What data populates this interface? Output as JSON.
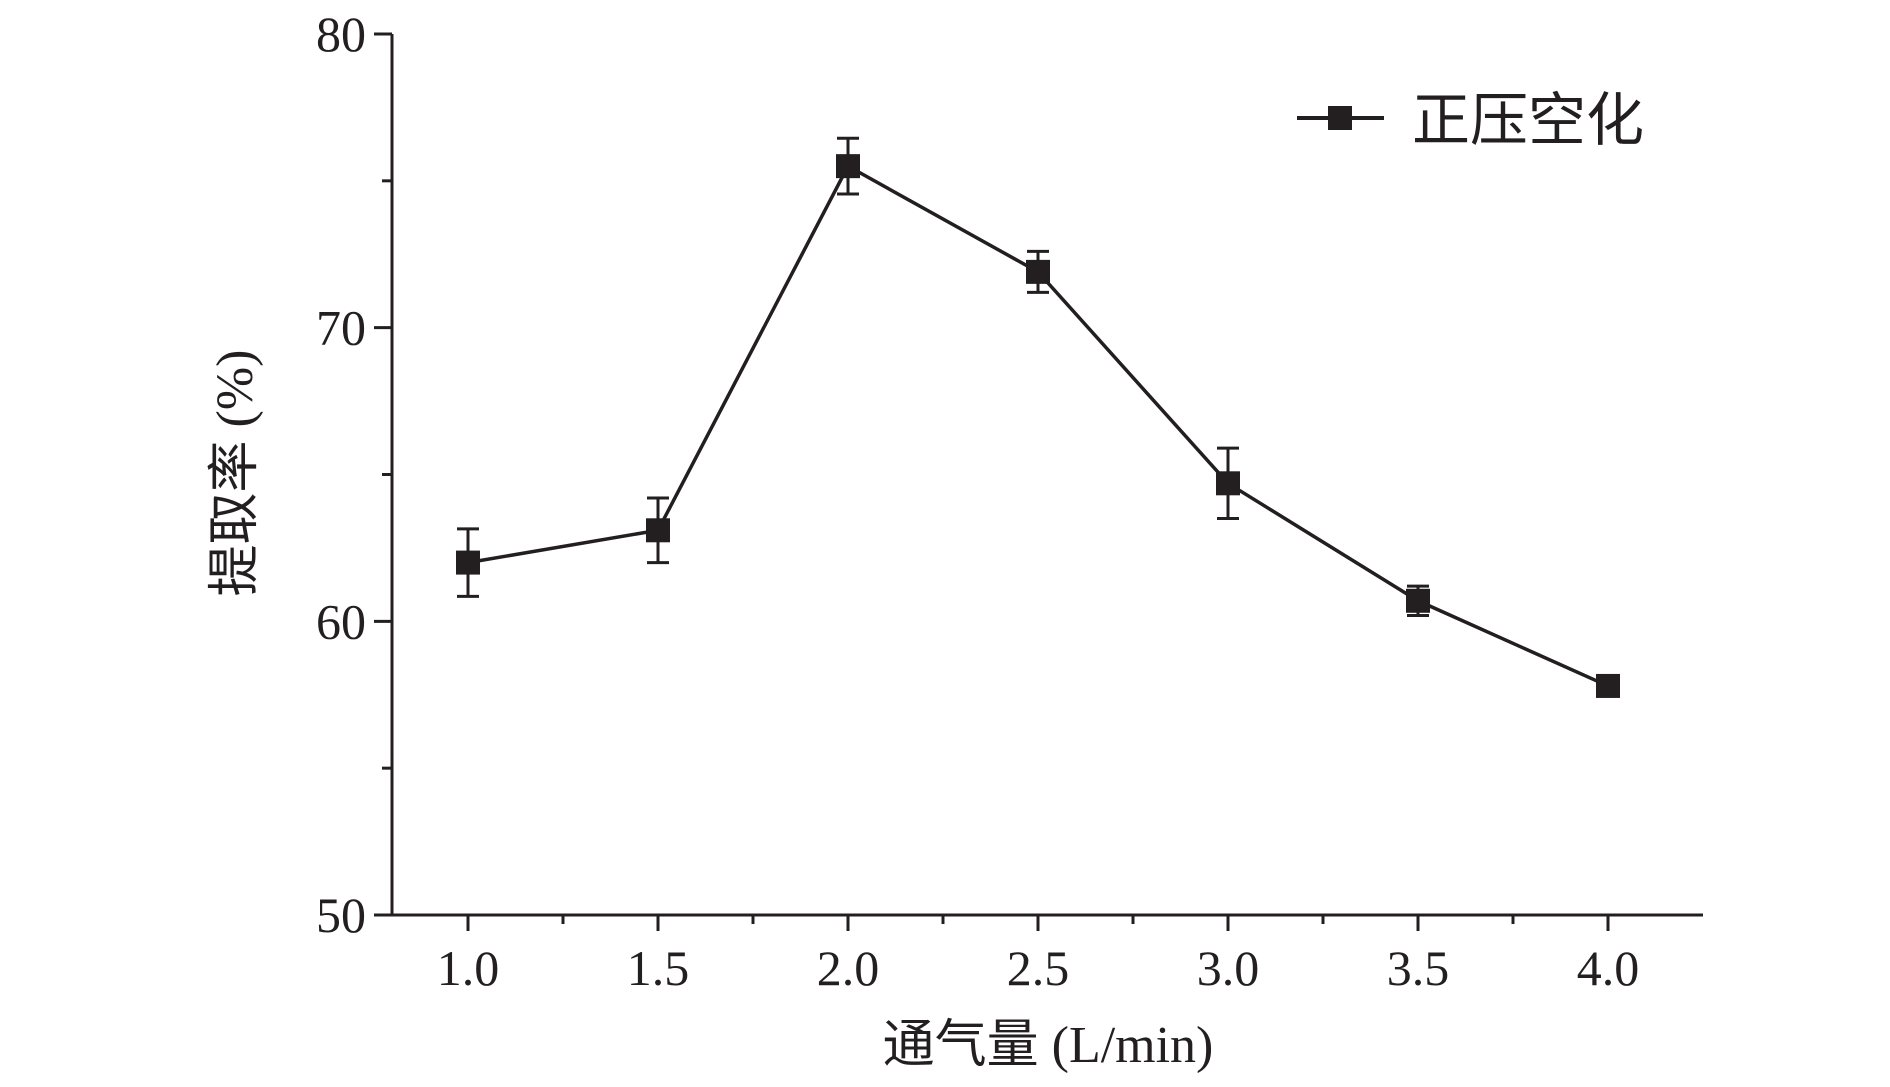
{
  "chart_data": {
    "type": "line",
    "xlabel": "通气量 (L/min)",
    "ylabel": "提取率 (%)",
    "x": [
      1.0,
      1.5,
      2.0,
      2.5,
      3.0,
      3.5,
      4.0
    ],
    "x_tick_labels": [
      "1.0",
      "1.5",
      "2.0",
      "2.5",
      "3.0",
      "3.5",
      "4.0"
    ],
    "xlim": [
      0.8,
      4.25
    ],
    "ylim": [
      50,
      80
    ],
    "y_ticks": [
      50,
      60,
      70,
      80
    ],
    "y_tick_labels": [
      "50",
      "60",
      "70",
      "80"
    ],
    "series": [
      {
        "name": "正压空化",
        "values": [
          62.0,
          63.1,
          75.5,
          71.9,
          64.7,
          60.7,
          57.8
        ],
        "errors": [
          1.15,
          1.1,
          0.95,
          0.7,
          1.2,
          0.5,
          0.15
        ],
        "color": "#231f20",
        "marker": "square"
      }
    ],
    "grid": false,
    "legend_position": "top-right"
  }
}
